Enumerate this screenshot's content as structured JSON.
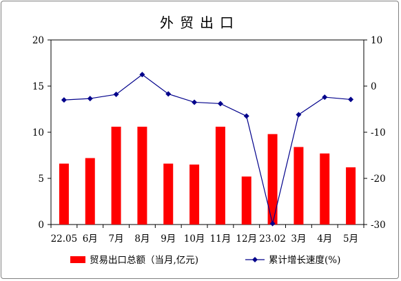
{
  "chart_data": {
    "type": "bar+line",
    "title": "外贸出口",
    "categories": [
      "22.05",
      "6月",
      "7月",
      "8月",
      "9月",
      "10月",
      "11月",
      "12月",
      "23.02",
      "3月",
      "4月",
      "5月"
    ],
    "series": [
      {
        "name": "贸易出口总额（当月,亿元)",
        "type": "bar",
        "axis": "left",
        "color": "#ff0000",
        "values": [
          6.6,
          7.2,
          10.6,
          10.6,
          6.6,
          6.5,
          10.6,
          5.2,
          9.8,
          8.4,
          7.7,
          6.2
        ]
      },
      {
        "name": "累计增长速度(%)",
        "type": "line",
        "axis": "right",
        "color": "#00008b",
        "marker": "diamond",
        "values": [
          -3.0,
          -2.7,
          -1.8,
          2.5,
          -1.7,
          -3.5,
          -3.8,
          -6.5,
          -29.8,
          -6.2,
          -2.4,
          -2.9
        ]
      }
    ],
    "y_left": {
      "ylim": [
        0,
        20
      ],
      "ticks": [
        "0",
        "5",
        "10",
        "15",
        "20"
      ]
    },
    "y_right": {
      "ylim": [
        -30,
        10
      ],
      "ticks": [
        "-30",
        "-20",
        "-10",
        "0",
        "10"
      ]
    },
    "grid": false,
    "legend_position": "bottom"
  }
}
